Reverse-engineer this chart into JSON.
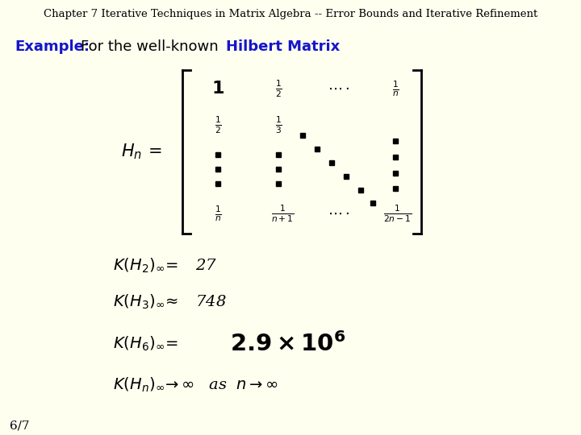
{
  "background_color": "#FFFFF0",
  "title": "Chapter 7 Iterative Techniques in Matrix Algebra -- Error Bounds and Iterative Refinement",
  "title_fontsize": 9.5,
  "title_color": "#000000",
  "example_label": "Example:",
  "example_text": " For the well-known ",
  "hilbert_text": "Hilbert Matrix",
  "example_fontsize": 13,
  "page_number": "6/7",
  "matrix_label_fontsize": 15,
  "matrix_entry_fontsize": 11,
  "matrix_bold_fontsize": 16,
  "eq_fontsize": 14,
  "big_fontsize": 21
}
